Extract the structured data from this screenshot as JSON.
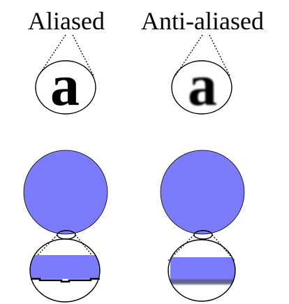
{
  "labels": {
    "aliased": "Aliased",
    "anti_aliased": "Anti-aliased"
  },
  "glyph": "a",
  "colors": {
    "shape_fill": "#7b7bfb",
    "outline": "#000000",
    "background": "#ffffff"
  }
}
